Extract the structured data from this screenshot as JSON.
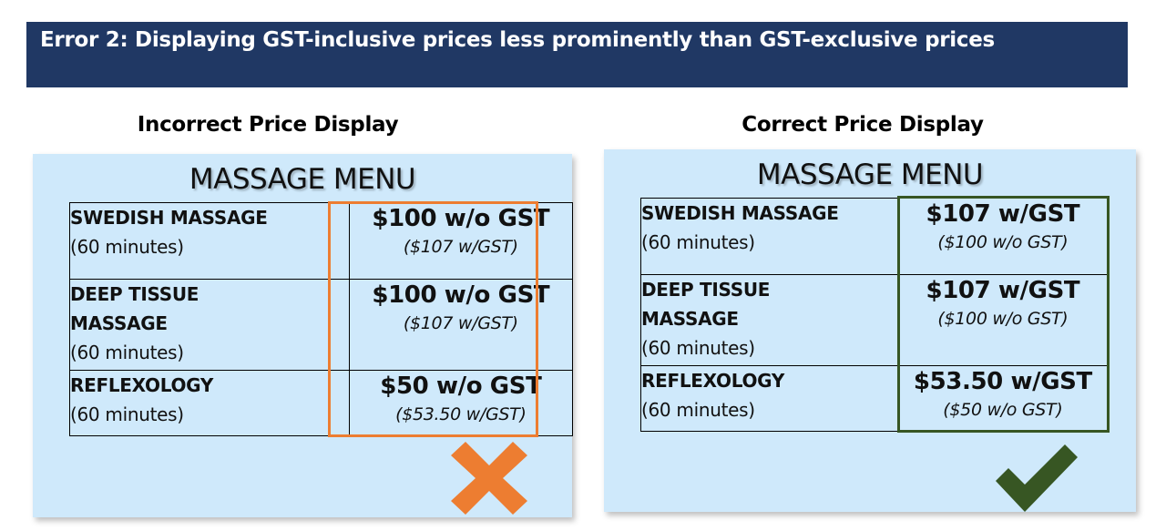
{
  "banner": {
    "title": "Error 2: Displaying GST-inclusive prices less prominently than GST-exclusive prices"
  },
  "colors": {
    "banner": "#203864",
    "panel": "#cfe9fb",
    "incorrect": "#ed7d31",
    "correct": "#375623"
  },
  "incorrect": {
    "heading": "Incorrect Price Display",
    "menu_title": "MASSAGE MENU",
    "items": [
      {
        "name": "SWEDISH MASSAGE",
        "duration": "(60 minutes)",
        "price_main": "$100 w/o GST",
        "price_sub": "($107 w/GST)"
      },
      {
        "name": "DEEP TISSUE MASSAGE",
        "duration": "(60 minutes)",
        "price_main": "$100 w/o GST",
        "price_sub": "($107 w/GST)"
      },
      {
        "name": "REFLEXOLOGY",
        "duration": "(60 minutes)",
        "price_main": "$50 w/o GST",
        "price_sub": "($53.50 w/GST)"
      }
    ],
    "icon": "cross-icon"
  },
  "correct": {
    "heading": "Correct Price Display",
    "menu_title": "MASSAGE MENU",
    "items": [
      {
        "name": "SWEDISH MASSAGE",
        "duration": "(60 minutes)",
        "price_main": "$107 w/GST",
        "price_sub": "($100 w/o GST)"
      },
      {
        "name": "DEEP TISSUE MASSAGE",
        "duration": "(60 minutes)",
        "price_main": "$107 w/GST",
        "price_sub": "($100 w/o GST)"
      },
      {
        "name": "REFLEXOLOGY",
        "duration": "(60 minutes)",
        "price_main": "$53.50 w/GST",
        "price_sub": "($50 w/o GST)"
      }
    ],
    "icon": "checkmark-icon"
  }
}
